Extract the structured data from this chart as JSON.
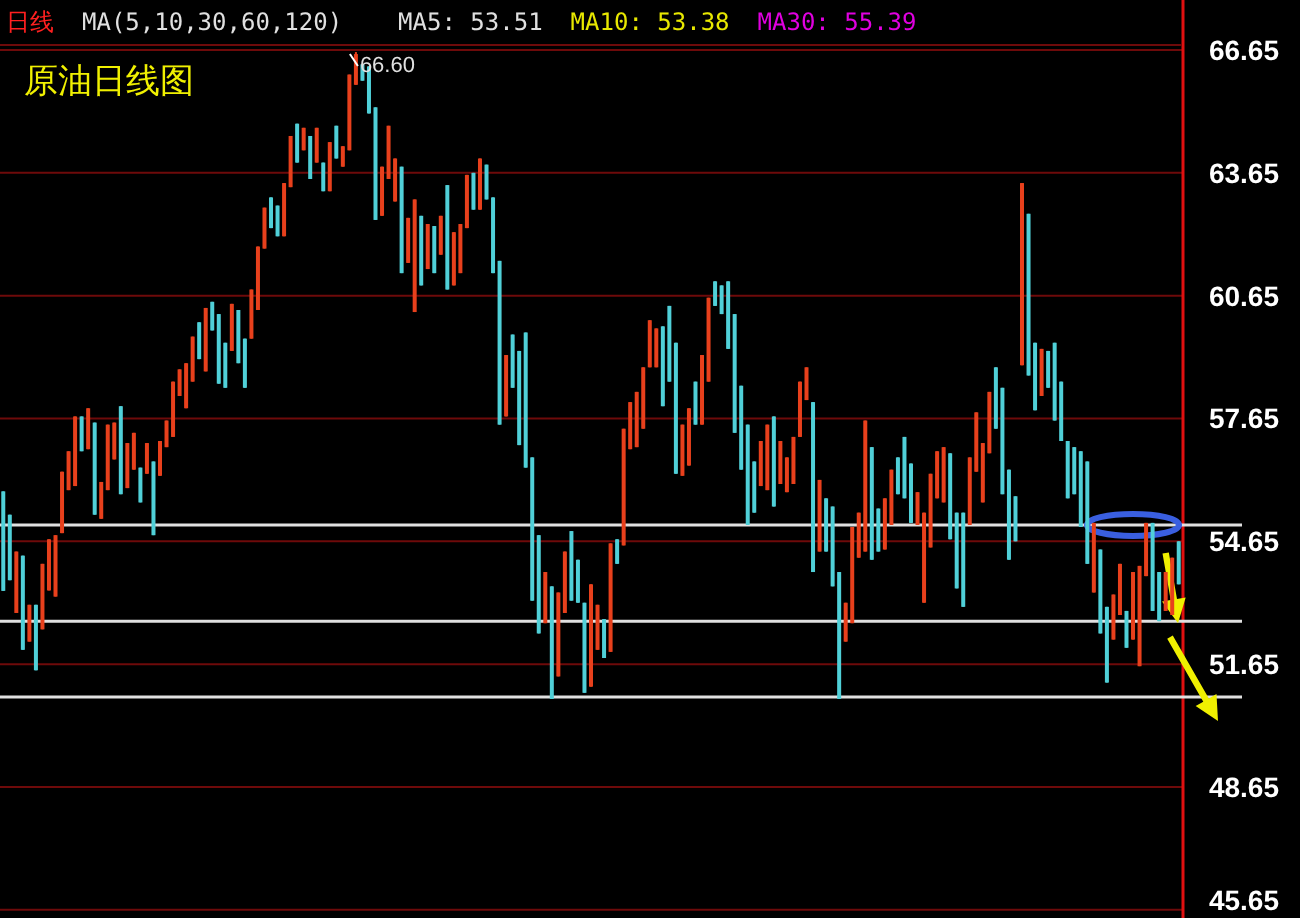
{
  "chart_data": {
    "type": "candlestick",
    "title": "原油日线图",
    "annotations": [
      "日线",
      "MA(5,10,30,60,120)",
      "MA5: 53.51",
      "MA10: 53.38",
      "MA30: 55.39",
      "66.60"
    ],
    "ylim": [
      45.45,
      66.65
    ],
    "yticks": [
      45.65,
      48.65,
      51.65,
      54.65,
      57.65,
      60.65,
      63.65,
      66.65
    ],
    "grid": "y",
    "ref_lines": [
      {
        "axis": "y",
        "value": 50.85,
        "color": "#e0e0e0"
      },
      {
        "axis": "y",
        "value": 52.7,
        "color": "#e0e0e0"
      },
      {
        "axis": "y",
        "value": 55.05,
        "color": "#e0e0e0"
      }
    ],
    "categories": [
      null,
      null,
      null,
      null,
      null,
      null,
      null,
      null,
      null,
      null,
      null,
      null,
      null,
      null,
      null,
      null,
      null,
      null,
      null,
      null,
      null,
      null,
      null,
      null,
      null,
      null,
      null,
      null,
      null,
      null,
      null,
      null,
      null,
      null,
      null,
      null,
      null,
      null,
      null,
      null,
      null,
      null,
      null,
      null,
      null,
      null,
      null,
      null,
      null,
      null,
      null,
      null,
      null,
      null,
      null,
      null,
      null,
      null,
      null,
      null,
      null,
      null,
      null,
      null,
      null,
      null,
      null,
      null,
      null,
      null,
      null,
      null,
      null,
      null,
      null,
      null,
      null,
      null,
      null,
      null,
      null,
      null,
      null,
      null,
      null,
      null,
      null,
      null,
      null,
      null,
      null,
      null,
      null,
      null,
      null,
      null,
      null,
      null,
      null,
      null,
      null,
      null,
      null,
      null,
      null,
      null,
      null,
      null,
      null,
      null,
      null,
      null,
      null,
      null,
      null,
      null,
      null,
      null,
      null,
      null,
      null,
      null,
      null,
      null,
      null,
      null,
      null,
      null,
      null,
      null,
      null,
      null,
      null,
      null,
      null,
      null,
      null,
      null,
      null,
      null,
      null,
      null,
      null,
      null,
      null,
      null,
      null,
      null,
      null,
      null,
      null,
      null,
      null,
      null,
      null,
      null,
      null,
      null,
      null,
      null,
      null,
      null,
      null,
      null,
      null,
      null,
      null,
      null,
      null,
      null,
      null,
      null,
      null,
      null,
      null,
      null,
      null,
      null,
      null,
      null,
      null
    ],
    "ohlc": [
      [
        55.87,
        55.87,
        53.44,
        53.44
      ],
      [
        55.3,
        55.3,
        53.7,
        53.7
      ],
      [
        52.9,
        54.4,
        52.9,
        54.4
      ],
      [
        54.3,
        54.3,
        52.0,
        52.0
      ],
      [
        52.2,
        53.1,
        52.2,
        53.1
      ],
      [
        53.1,
        53.1,
        51.5,
        51.5
      ],
      [
        52.5,
        54.1,
        52.5,
        54.1
      ],
      [
        53.45,
        54.7,
        53.45,
        54.7
      ],
      [
        53.3,
        54.8,
        53.3,
        54.8
      ],
      [
        54.85,
        56.35,
        54.85,
        56.35
      ],
      [
        55.9,
        56.85,
        55.9,
        56.85
      ],
      [
        56.0,
        57.7,
        56.0,
        57.7
      ],
      [
        57.7,
        57.7,
        56.85,
        56.85
      ],
      [
        56.9,
        57.9,
        56.9,
        57.9
      ],
      [
        57.55,
        57.55,
        55.3,
        55.3
      ],
      [
        55.2,
        56.1,
        55.2,
        56.1
      ],
      [
        55.9,
        57.5,
        55.9,
        57.5
      ],
      [
        56.65,
        57.55,
        56.65,
        57.55
      ],
      [
        57.95,
        57.95,
        55.8,
        55.8
      ],
      [
        55.95,
        57.05,
        55.95,
        57.05
      ],
      [
        56.4,
        57.3,
        56.4,
        57.3
      ],
      [
        56.45,
        56.45,
        55.6,
        55.6
      ],
      [
        56.3,
        57.05,
        56.3,
        57.05
      ],
      [
        56.6,
        56.6,
        54.8,
        54.8
      ],
      [
        56.25,
        57.1,
        56.25,
        57.1
      ],
      [
        56.95,
        57.6,
        56.95,
        57.6
      ],
      [
        57.2,
        58.55,
        57.2,
        58.55
      ],
      [
        58.2,
        58.85,
        58.2,
        58.85
      ],
      [
        57.9,
        59.0,
        57.9,
        59.0
      ],
      [
        58.55,
        59.65,
        58.55,
        59.65
      ],
      [
        60.0,
        60.0,
        59.1,
        59.1
      ],
      [
        58.8,
        60.35,
        58.8,
        60.35
      ],
      [
        60.5,
        60.5,
        59.8,
        59.8
      ],
      [
        60.2,
        60.2,
        58.5,
        58.5
      ],
      [
        59.5,
        59.5,
        58.4,
        58.4
      ],
      [
        59.3,
        60.45,
        59.3,
        60.45
      ],
      [
        60.3,
        60.3,
        59.0,
        59.0
      ],
      [
        59.6,
        59.6,
        58.4,
        58.4
      ],
      [
        59.6,
        60.8,
        59.6,
        60.8
      ],
      [
        60.3,
        61.85,
        60.3,
        61.85
      ],
      [
        61.8,
        62.8,
        61.8,
        62.8
      ],
      [
        63.05,
        63.05,
        62.3,
        62.3
      ],
      [
        62.85,
        62.85,
        62.1,
        62.1
      ],
      [
        62.1,
        63.4,
        62.1,
        63.4
      ],
      [
        63.3,
        64.55,
        63.3,
        64.55
      ],
      [
        64.85,
        64.85,
        63.9,
        63.9
      ],
      [
        64.2,
        64.75,
        64.2,
        64.75
      ],
      [
        64.55,
        64.55,
        63.5,
        63.5
      ],
      [
        63.9,
        64.75,
        63.9,
        64.75
      ],
      [
        63.9,
        63.9,
        63.2,
        63.2
      ],
      [
        63.2,
        64.4,
        63.2,
        64.4
      ],
      [
        64.8,
        64.8,
        64.0,
        64.0
      ],
      [
        63.8,
        64.3,
        63.8,
        64.3
      ],
      [
        64.2,
        66.05,
        64.2,
        66.05
      ],
      [
        65.8,
        66.6,
        65.8,
        66.55
      ],
      [
        66.3,
        66.3,
        65.9,
        65.9
      ],
      [
        66.25,
        66.25,
        65.1,
        65.1
      ],
      [
        65.25,
        65.25,
        62.5,
        62.5
      ],
      [
        62.6,
        63.8,
        62.6,
        63.8
      ],
      [
        63.5,
        64.8,
        63.5,
        64.8
      ],
      [
        62.95,
        64.0,
        62.95,
        64.0
      ],
      [
        63.8,
        63.8,
        61.2,
        61.2
      ],
      [
        61.45,
        62.55,
        61.45,
        62.55
      ],
      [
        60.25,
        63.0,
        60.25,
        63.0
      ],
      [
        62.6,
        62.6,
        60.9,
        60.9
      ],
      [
        61.3,
        62.4,
        61.3,
        62.4
      ],
      [
        62.35,
        62.35,
        61.2,
        61.2
      ],
      [
        61.65,
        62.6,
        61.65,
        62.6
      ],
      [
        63.35,
        63.35,
        60.8,
        60.8
      ],
      [
        60.9,
        62.2,
        60.9,
        62.2
      ],
      [
        61.2,
        62.4,
        61.2,
        62.4
      ],
      [
        62.3,
        63.6,
        62.3,
        63.6
      ],
      [
        63.65,
        63.65,
        62.75,
        62.75
      ],
      [
        62.75,
        64.0,
        62.75,
        64.0
      ],
      [
        63.85,
        63.85,
        63.0,
        63.0
      ],
      [
        63.05,
        63.05,
        61.2,
        61.2
      ],
      [
        61.5,
        61.5,
        57.5,
        57.5
      ],
      [
        57.7,
        59.2,
        57.7,
        59.2
      ],
      [
        59.7,
        59.7,
        58.4,
        58.4
      ],
      [
        59.3,
        59.3,
        57.0,
        57.0
      ],
      [
        59.75,
        59.75,
        56.45,
        56.45
      ],
      [
        56.7,
        56.7,
        53.2,
        53.2
      ],
      [
        54.8,
        54.8,
        52.4,
        52.4
      ],
      [
        52.65,
        53.9,
        52.65,
        53.9
      ],
      [
        53.55,
        53.55,
        50.8,
        50.8
      ],
      [
        51.35,
        53.4,
        51.35,
        53.4
      ],
      [
        52.9,
        54.4,
        52.9,
        54.4
      ],
      [
        54.9,
        54.9,
        53.2,
        53.2
      ],
      [
        54.2,
        54.2,
        53.15,
        53.15
      ],
      [
        53.15,
        53.15,
        50.95,
        50.95
      ],
      [
        51.1,
        53.6,
        51.1,
        53.6
      ],
      [
        52.0,
        53.1,
        52.0,
        53.1
      ],
      [
        52.75,
        52.75,
        51.8,
        51.8
      ],
      [
        51.95,
        54.6,
        51.95,
        54.6
      ],
      [
        54.7,
        54.7,
        54.1,
        54.1
      ],
      [
        54.55,
        57.4,
        54.55,
        57.4
      ],
      [
        56.9,
        58.05,
        56.9,
        58.05
      ],
      [
        56.95,
        58.3,
        56.95,
        58.3
      ],
      [
        57.4,
        58.9,
        57.4,
        58.9
      ],
      [
        58.9,
        60.05,
        58.9,
        60.05
      ],
      [
        58.9,
        59.85,
        58.9,
        59.85
      ],
      [
        59.9,
        59.9,
        57.95,
        57.95
      ],
      [
        60.4,
        60.4,
        58.55,
        58.55
      ],
      [
        59.5,
        59.5,
        56.3,
        56.3
      ],
      [
        56.25,
        57.5,
        56.25,
        57.5
      ],
      [
        56.5,
        57.9,
        56.5,
        57.9
      ],
      [
        58.55,
        58.55,
        57.5,
        57.5
      ],
      [
        57.5,
        59.2,
        57.5,
        59.2
      ],
      [
        58.55,
        60.6,
        58.55,
        60.6
      ],
      [
        61.0,
        61.0,
        60.4,
        60.4
      ],
      [
        60.9,
        60.9,
        60.2,
        60.2
      ],
      [
        61.0,
        61.0,
        59.35,
        59.35
      ],
      [
        60.2,
        60.2,
        57.3,
        57.3
      ],
      [
        58.45,
        58.45,
        56.4,
        56.4
      ],
      [
        57.5,
        57.5,
        55.05,
        55.05
      ],
      [
        56.6,
        56.6,
        55.35,
        55.35
      ],
      [
        56.0,
        57.1,
        56.0,
        57.1
      ],
      [
        55.9,
        57.5,
        55.9,
        57.5
      ],
      [
        57.7,
        57.7,
        55.5,
        55.5
      ],
      [
        56.05,
        57.1,
        56.05,
        57.1
      ],
      [
        55.85,
        56.7,
        55.85,
        56.7
      ],
      [
        56.05,
        57.2,
        56.05,
        57.2
      ],
      [
        57.2,
        58.55,
        57.2,
        58.55
      ],
      [
        58.1,
        58.9,
        58.1,
        58.9
      ],
      [
        58.05,
        58.05,
        53.9,
        53.9
      ],
      [
        54.4,
        56.15,
        54.4,
        56.15
      ],
      [
        55.7,
        55.7,
        54.4,
        54.4
      ],
      [
        55.5,
        55.5,
        53.55,
        53.55
      ],
      [
        53.9,
        53.9,
        50.8,
        50.8
      ],
      [
        52.2,
        53.15,
        52.2,
        53.15
      ],
      [
        52.65,
        55.0,
        52.65,
        55.0
      ],
      [
        54.25,
        55.35,
        54.25,
        55.35
      ],
      [
        54.4,
        57.6,
        54.4,
        57.6
      ],
      [
        56.95,
        56.95,
        54.2,
        54.2
      ],
      [
        55.45,
        55.45,
        54.4,
        54.4
      ],
      [
        54.45,
        55.7,
        54.45,
        55.7
      ],
      [
        55.05,
        56.4,
        55.05,
        56.4
      ],
      [
        56.7,
        56.7,
        55.8,
        55.8
      ],
      [
        57.2,
        57.2,
        55.7,
        55.7
      ],
      [
        56.55,
        56.55,
        55.1,
        55.1
      ],
      [
        55.05,
        55.85,
        55.05,
        55.85
      ],
      [
        53.15,
        55.35,
        53.15,
        55.35
      ],
      [
        54.5,
        56.3,
        54.5,
        56.3
      ],
      [
        55.7,
        56.85,
        55.7,
        56.85
      ],
      [
        55.6,
        56.95,
        55.6,
        56.95
      ],
      [
        56.8,
        56.8,
        54.7,
        54.7
      ],
      [
        55.35,
        55.35,
        53.5,
        53.5
      ],
      [
        55.35,
        55.35,
        53.05,
        53.05
      ],
      [
        55.05,
        56.7,
        55.05,
        56.7
      ],
      [
        56.35,
        57.8,
        56.35,
        57.8
      ],
      [
        55.6,
        57.05,
        55.6,
        57.05
      ],
      [
        56.8,
        58.3,
        56.8,
        58.3
      ],
      [
        58.9,
        58.9,
        57.4,
        57.4
      ],
      [
        58.4,
        58.4,
        55.8,
        55.8
      ],
      [
        56.4,
        56.4,
        54.2,
        54.2
      ],
      [
        55.75,
        55.75,
        54.65,
        54.65
      ],
      [
        58.95,
        63.4,
        58.95,
        63.4
      ],
      [
        62.65,
        62.65,
        58.7,
        58.7
      ],
      [
        59.5,
        59.5,
        57.85,
        57.85
      ],
      [
        58.2,
        59.35,
        58.2,
        59.35
      ],
      [
        59.3,
        59.3,
        58.4,
        58.4
      ],
      [
        59.5,
        59.5,
        57.6,
        57.6
      ],
      [
        58.55,
        58.55,
        57.1,
        57.1
      ],
      [
        57.1,
        57.1,
        55.7,
        55.7
      ],
      [
        56.95,
        56.95,
        55.8,
        55.8
      ],
      [
        56.85,
        56.85,
        55.0,
        55.0
      ],
      [
        56.6,
        56.6,
        54.1,
        54.1
      ],
      [
        53.4,
        55.1,
        53.4,
        55.1
      ],
      [
        54.45,
        54.45,
        52.4,
        52.4
      ],
      [
        53.05,
        53.05,
        51.2,
        51.2
      ],
      [
        52.25,
        53.35,
        52.25,
        53.35
      ],
      [
        52.85,
        54.1,
        52.85,
        54.1
      ],
      [
        52.95,
        52.95,
        52.05,
        52.05
      ],
      [
        52.25,
        53.9,
        52.25,
        53.9
      ],
      [
        51.6,
        54.05,
        51.6,
        54.05
      ],
      [
        53.8,
        55.1,
        53.8,
        55.1
      ],
      [
        55.1,
        55.1,
        52.95,
        52.95
      ],
      [
        53.9,
        53.9,
        52.7,
        52.7
      ],
      [
        52.95,
        53.9,
        52.95,
        53.9
      ],
      [
        52.85,
        54.25,
        52.85,
        54.25
      ],
      [
        54.65,
        54.65,
        53.6,
        53.6
      ]
    ],
    "colors": [
      "#50d0d8",
      "#50d0d8",
      "#e8401c",
      "#50d0d8",
      "#e8401c",
      "#50d0d8",
      "#e8401c",
      "#e8401c",
      "#e8401c",
      "#e8401c",
      "#e8401c",
      "#e8401c",
      "#50d0d8",
      "#e8401c",
      "#50d0d8",
      "#e8401c",
      "#e8401c",
      "#e8401c",
      "#50d0d8",
      "#e8401c",
      "#e8401c",
      "#50d0d8",
      "#e8401c",
      "#50d0d8",
      "#e8401c",
      "#e8401c",
      "#e8401c",
      "#e8401c",
      "#e8401c",
      "#e8401c",
      "#50d0d8",
      "#e8401c",
      "#50d0d8",
      "#50d0d8",
      "#50d0d8",
      "#e8401c",
      "#50d0d8",
      "#50d0d8",
      "#e8401c",
      "#e8401c",
      "#e8401c",
      "#50d0d8",
      "#50d0d8",
      "#e8401c",
      "#e8401c",
      "#50d0d8",
      "#e8401c",
      "#50d0d8",
      "#e8401c",
      "#50d0d8",
      "#e8401c",
      "#50d0d8",
      "#e8401c",
      "#e8401c",
      "#e8401c",
      "#50d0d8",
      "#50d0d8",
      "#50d0d8",
      "#e8401c",
      "#e8401c",
      "#e8401c",
      "#50d0d8",
      "#e8401c",
      "#e8401c",
      "#50d0d8",
      "#e8401c",
      "#50d0d8",
      "#e8401c",
      "#50d0d8",
      "#e8401c",
      "#e8401c",
      "#e8401c",
      "#50d0d8",
      "#e8401c",
      "#50d0d8",
      "#50d0d8",
      "#50d0d8",
      "#e8401c",
      "#50d0d8",
      "#50d0d8",
      "#50d0d8",
      "#50d0d8",
      "#50d0d8",
      "#e8401c",
      "#50d0d8",
      "#e8401c",
      "#e8401c",
      "#50d0d8",
      "#50d0d8",
      "#50d0d8",
      "#e8401c",
      "#e8401c",
      "#50d0d8",
      "#e8401c",
      "#50d0d8",
      "#e8401c",
      "#e8401c",
      "#e8401c",
      "#e8401c",
      "#e8401c",
      "#e8401c",
      "#50d0d8",
      "#50d0d8",
      "#50d0d8",
      "#e8401c",
      "#e8401c",
      "#50d0d8",
      "#e8401c",
      "#e8401c",
      "#50d0d8",
      "#50d0d8",
      "#50d0d8",
      "#50d0d8",
      "#50d0d8",
      "#50d0d8",
      "#50d0d8",
      "#e8401c",
      "#e8401c",
      "#50d0d8",
      "#e8401c",
      "#e8401c",
      "#e8401c",
      "#e8401c",
      "#e8401c",
      "#50d0d8",
      "#e8401c",
      "#50d0d8",
      "#50d0d8",
      "#50d0d8",
      "#e8401c",
      "#e8401c",
      "#e8401c",
      "#e8401c",
      "#50d0d8",
      "#50d0d8",
      "#e8401c",
      "#e8401c",
      "#50d0d8",
      "#50d0d8",
      "#50d0d8",
      "#e8401c",
      "#e8401c",
      "#e8401c",
      "#e8401c",
      "#e8401c",
      "#50d0d8",
      "#50d0d8",
      "#50d0d8",
      "#e8401c",
      "#e8401c",
      "#e8401c",
      "#e8401c",
      "#50d0d8",
      "#50d0d8",
      "#50d0d8",
      "#50d0d8",
      "#e8401c",
      "#50d0d8",
      "#50d0d8",
      "#e8401c",
      "#50d0d8",
      "#50d0d8",
      "#50d0d8",
      "#50d0d8",
      "#50d0d8",
      "#50d0d8",
      "#50d0d8",
      "#e8401c",
      "#50d0d8",
      "#50d0d8",
      "#e8401c",
      "#e8401c",
      "#50d0d8",
      "#e8401c",
      "#e8401c",
      "#e8401c",
      "#50d0d8",
      "#50d0d8",
      "#e8401c",
      "#e8401c",
      "#50d0d8"
    ]
  }
}
